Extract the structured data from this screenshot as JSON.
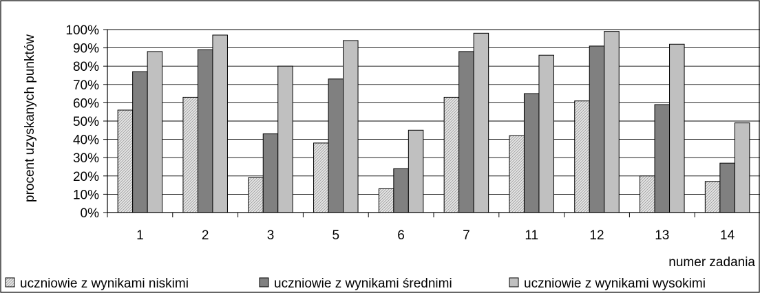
{
  "chart_data": {
    "type": "bar",
    "title": "",
    "xlabel": "numer zadania",
    "ylabel": "procent uzyskanych punktów",
    "ylim": [
      0,
      100
    ],
    "y_ticks": [
      "0%",
      "10%",
      "20%",
      "30%",
      "40%",
      "50%",
      "60%",
      "70%",
      "80%",
      "90%",
      "100%"
    ],
    "grid": true,
    "legend_position": "bottom",
    "categories": [
      "1",
      "2",
      "3",
      "5",
      "6",
      "7",
      "11",
      "12",
      "13",
      "14"
    ],
    "series": [
      {
        "name": "uczniowie z wynikami niskimi",
        "values": [
          56,
          63,
          19,
          38,
          13,
          63,
          42,
          61,
          20,
          17
        ],
        "color": "#d9d9d9",
        "pattern": "hatched"
      },
      {
        "name": "uczniowie z wynikami średnimi",
        "values": [
          77,
          89,
          43,
          73,
          24,
          88,
          65,
          91,
          59,
          27
        ],
        "color": "#808080"
      },
      {
        "name": "uczniowie z wynikami wysokimi",
        "values": [
          88,
          97,
          80,
          94,
          45,
          98,
          86,
          99,
          92,
          49
        ],
        "color": "#c0c0c0"
      }
    ]
  }
}
